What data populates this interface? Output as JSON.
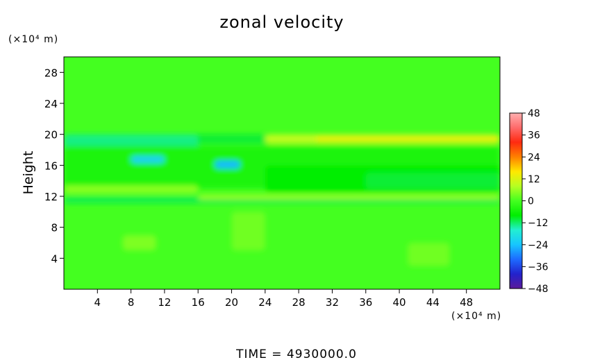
{
  "chart_data": {
    "type": "heatmap",
    "title": "zonal velocity",
    "xlabel": "",
    "ylabel": "Height",
    "x_unit": "(×10⁴ m)",
    "y_unit": "(×10⁴ m)",
    "xlim": [
      0,
      52
    ],
    "ylim": [
      0,
      30
    ],
    "x_ticks": [
      4,
      8,
      12,
      16,
      20,
      24,
      28,
      32,
      36,
      40,
      44,
      48
    ],
    "y_ticks": [
      4,
      8,
      12,
      16,
      20,
      24,
      28
    ],
    "footer": "TIME = 4930000.0",
    "colorbar": {
      "ticks": [
        48,
        36,
        24,
        12,
        0,
        -12,
        -24,
        -36,
        -48
      ],
      "range": [
        -48,
        48
      ],
      "colors": [
        "#5a1a9a",
        "#2222cc",
        "#1d6bff",
        "#17c5ff",
        "#22efd2",
        "#00ee00",
        "#44ff20",
        "#b6ff22",
        "#ffe800",
        "#ff8000",
        "#ff2a10",
        "#ff6a6a",
        "#ffb0b0"
      ]
    },
    "background_value": 0,
    "regions": [
      {
        "x": [
          0,
          52
        ],
        "y": [
          18.8,
          20
        ],
        "value": -10
      },
      {
        "x": [
          0,
          16
        ],
        "y": [
          18.2,
          20
        ],
        "value": -13
      },
      {
        "x": [
          24,
          52
        ],
        "y": [
          18.8,
          20
        ],
        "value": 9
      },
      {
        "x": [
          30,
          52
        ],
        "y": [
          19,
          19.8
        ],
        "value": 13
      },
      {
        "x": [
          0,
          52
        ],
        "y": [
          13,
          18.5
        ],
        "value": -5
      },
      {
        "x": [
          8,
          12
        ],
        "y": [
          16.3,
          17.2
        ],
        "value": -22
      },
      {
        "x": [
          18,
          21
        ],
        "y": [
          15.6,
          16.6
        ],
        "value": -25
      },
      {
        "x": [
          24,
          52
        ],
        "y": [
          12.5,
          16
        ],
        "value": -8
      },
      {
        "x": [
          36,
          52
        ],
        "y": [
          13,
          15
        ],
        "value": -10
      },
      {
        "x": [
          0,
          16
        ],
        "y": [
          12.4,
          13.4
        ],
        "value": 5
      },
      {
        "x": [
          0,
          52
        ],
        "y": [
          11.1,
          11.9
        ],
        "value": -11
      },
      {
        "x": [
          16,
          52
        ],
        "y": [
          11.6,
          12.2
        ],
        "value": 6
      },
      {
        "x": [
          20,
          24
        ],
        "y": [
          5,
          10
        ],
        "value": 3
      },
      {
        "x": [
          7,
          11
        ],
        "y": [
          5,
          7
        ],
        "value": 4
      },
      {
        "x": [
          41,
          46
        ],
        "y": [
          3,
          6
        ],
        "value": 3
      }
    ]
  }
}
